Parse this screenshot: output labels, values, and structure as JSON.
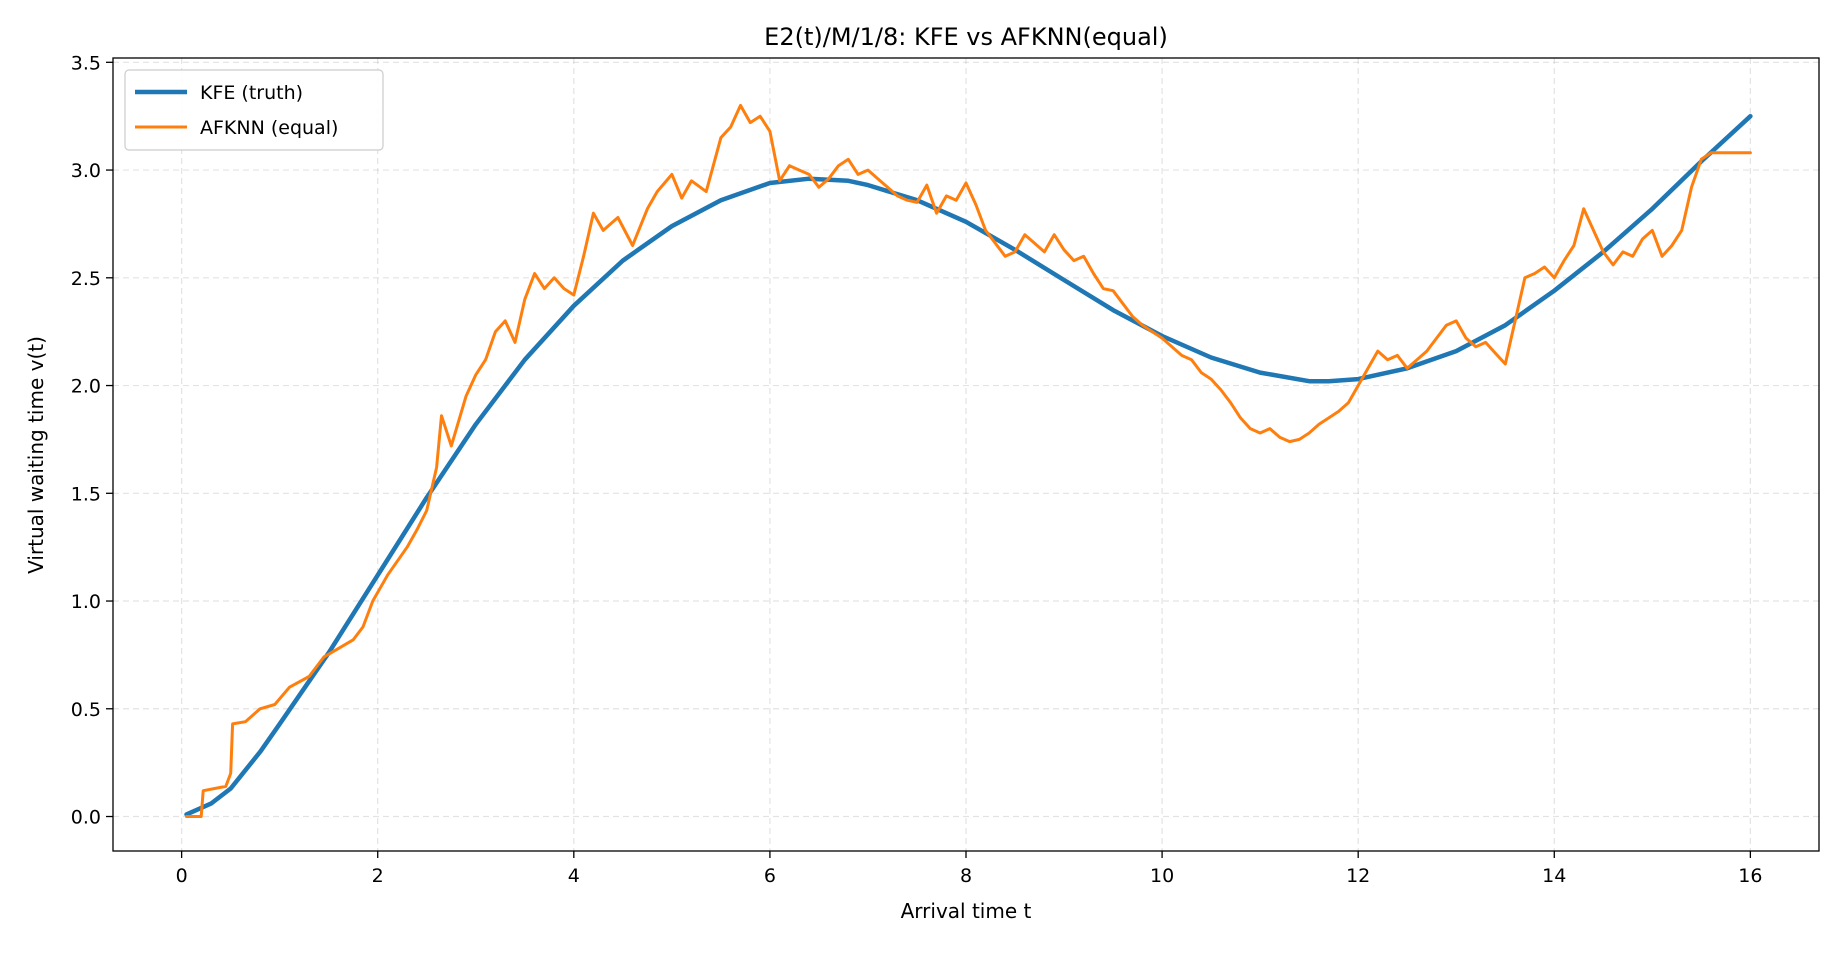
{
  "chart_data": {
    "type": "line",
    "title": "E2(t)/M/1/8: KFE vs AFKNN(equal)",
    "xlabel": "Arrival time t",
    "ylabel": "Virtual waiting time v(t)",
    "xlim": [
      -0.7,
      16.7
    ],
    "ylim": [
      -0.16,
      3.52
    ],
    "xticks": [
      0,
      2,
      4,
      6,
      8,
      10,
      12,
      14,
      16
    ],
    "yticks": [
      0.0,
      0.5,
      1.0,
      1.5,
      2.0,
      2.5,
      3.0,
      3.5
    ],
    "xtick_labels": [
      "0",
      "2",
      "4",
      "6",
      "8",
      "10",
      "12",
      "14",
      "16"
    ],
    "ytick_labels": [
      "0.0",
      "0.5",
      "1.0",
      "1.5",
      "2.0",
      "2.5",
      "3.0",
      "3.5"
    ],
    "grid": true,
    "legend_position": "top-left",
    "series": [
      {
        "name": "KFE (truth)",
        "color": "#1f77b4",
        "x": [
          0.05,
          0.3,
          0.5,
          0.8,
          1.0,
          1.5,
          2.0,
          2.5,
          3.0,
          3.5,
          4.0,
          4.5,
          5.0,
          5.5,
          6.0,
          6.4,
          6.8,
          7.0,
          7.5,
          8.0,
          8.5,
          9.0,
          9.5,
          10.0,
          10.5,
          11.0,
          11.5,
          11.7,
          12.0,
          12.5,
          13.0,
          13.5,
          14.0,
          14.5,
          15.0,
          15.5,
          16.0
        ],
        "y": [
          0.01,
          0.06,
          0.13,
          0.3,
          0.43,
          0.76,
          1.12,
          1.48,
          1.82,
          2.12,
          2.37,
          2.58,
          2.74,
          2.86,
          2.94,
          2.96,
          2.95,
          2.93,
          2.86,
          2.76,
          2.63,
          2.49,
          2.35,
          2.23,
          2.13,
          2.06,
          2.02,
          2.02,
          2.03,
          2.08,
          2.16,
          2.28,
          2.44,
          2.62,
          2.82,
          3.04,
          3.25
        ]
      },
      {
        "name": "AFKNN (equal)",
        "color": "#ff7f0e",
        "x": [
          0.05,
          0.2,
          0.22,
          0.45,
          0.5,
          0.52,
          0.65,
          0.8,
          0.95,
          1.1,
          1.3,
          1.45,
          1.6,
          1.75,
          1.85,
          1.95,
          2.1,
          2.3,
          2.4,
          2.5,
          2.6,
          2.65,
          2.75,
          2.9,
          3.0,
          3.1,
          3.2,
          3.3,
          3.4,
          3.5,
          3.6,
          3.7,
          3.8,
          3.9,
          4.0,
          4.1,
          4.2,
          4.3,
          4.45,
          4.6,
          4.75,
          4.85,
          5.0,
          5.1,
          5.2,
          5.35,
          5.5,
          5.6,
          5.7,
          5.8,
          5.9,
          6.0,
          6.1,
          6.2,
          6.3,
          6.4,
          6.5,
          6.6,
          6.7,
          6.8,
          6.9,
          7.0,
          7.1,
          7.2,
          7.3,
          7.4,
          7.5,
          7.6,
          7.7,
          7.8,
          7.9,
          8.0,
          8.1,
          8.2,
          8.3,
          8.4,
          8.5,
          8.6,
          8.7,
          8.8,
          8.9,
          9.0,
          9.1,
          9.2,
          9.3,
          9.4,
          9.5,
          9.6,
          9.7,
          9.8,
          9.9,
          10.0,
          10.1,
          10.2,
          10.3,
          10.4,
          10.5,
          10.6,
          10.7,
          10.8,
          10.9,
          11.0,
          11.1,
          11.2,
          11.3,
          11.4,
          11.5,
          11.6,
          11.7,
          11.8,
          11.9,
          12.0,
          12.1,
          12.2,
          12.3,
          12.4,
          12.5,
          12.6,
          12.7,
          12.8,
          12.9,
          13.0,
          13.1,
          13.2,
          13.3,
          13.4,
          13.5,
          13.6,
          13.7,
          13.8,
          13.9,
          14.0,
          14.1,
          14.2,
          14.3,
          14.4,
          14.5,
          14.6,
          14.7,
          14.8,
          14.9,
          15.0,
          15.1,
          15.2,
          15.3,
          15.4,
          15.5,
          15.6,
          16.0
        ],
        "y": [
          0.0,
          0.0,
          0.12,
          0.14,
          0.2,
          0.43,
          0.44,
          0.5,
          0.52,
          0.6,
          0.65,
          0.74,
          0.78,
          0.82,
          0.88,
          1.0,
          1.12,
          1.25,
          1.33,
          1.42,
          1.62,
          1.86,
          1.72,
          1.95,
          2.05,
          2.12,
          2.25,
          2.3,
          2.2,
          2.4,
          2.52,
          2.45,
          2.5,
          2.45,
          2.42,
          2.6,
          2.8,
          2.72,
          2.78,
          2.65,
          2.82,
          2.9,
          2.98,
          2.87,
          2.95,
          2.9,
          3.15,
          3.2,
          3.3,
          3.22,
          3.25,
          3.18,
          2.95,
          3.02,
          3.0,
          2.98,
          2.92,
          2.96,
          3.02,
          3.05,
          2.98,
          3.0,
          2.96,
          2.92,
          2.88,
          2.86,
          2.85,
          2.93,
          2.8,
          2.88,
          2.86,
          2.94,
          2.84,
          2.72,
          2.66,
          2.6,
          2.62,
          2.7,
          2.66,
          2.62,
          2.7,
          2.63,
          2.58,
          2.6,
          2.52,
          2.45,
          2.44,
          2.38,
          2.32,
          2.28,
          2.25,
          2.22,
          2.18,
          2.14,
          2.12,
          2.06,
          2.03,
          1.98,
          1.92,
          1.85,
          1.8,
          1.78,
          1.8,
          1.76,
          1.74,
          1.75,
          1.78,
          1.82,
          1.85,
          1.88,
          1.92,
          2.0,
          2.08,
          2.16,
          2.12,
          2.14,
          2.08,
          2.12,
          2.16,
          2.22,
          2.28,
          2.3,
          2.22,
          2.18,
          2.2,
          2.15,
          2.1,
          2.3,
          2.5,
          2.52,
          2.55,
          2.5,
          2.58,
          2.65,
          2.82,
          2.72,
          2.62,
          2.56,
          2.62,
          2.6,
          2.68,
          2.72,
          2.6,
          2.65,
          2.72,
          2.92,
          3.05,
          3.08,
          3.08
        ]
      }
    ]
  }
}
